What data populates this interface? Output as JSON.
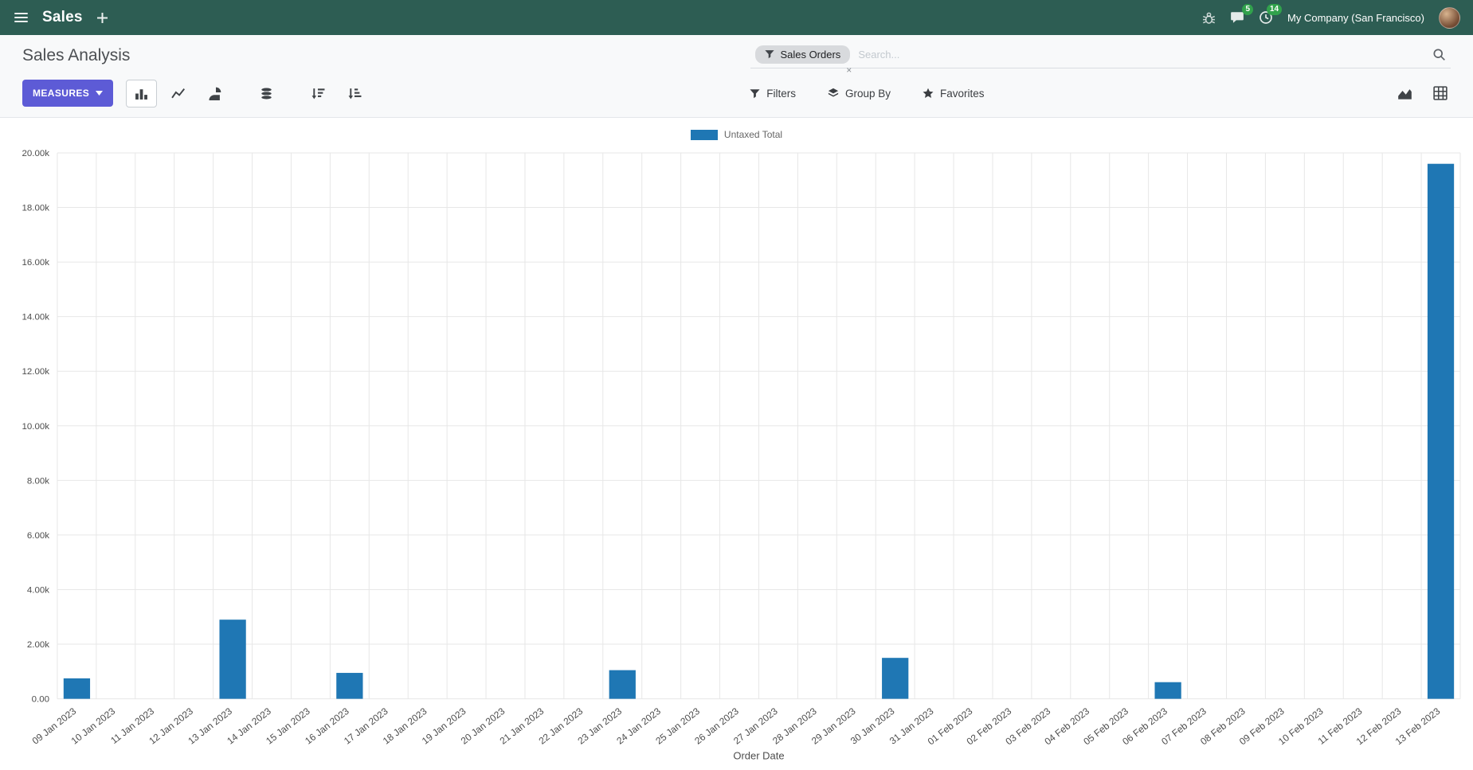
{
  "colors": {
    "navbar_bg": "#2d5d53",
    "accent": "#5d5bd6",
    "badge_green": "#31a24c",
    "bar_blue": "#1f77b4"
  },
  "navbar": {
    "app_name": "Sales",
    "company": "My Company (San Francisco)",
    "badges": {
      "messages": "5",
      "activities": "14"
    }
  },
  "control_panel": {
    "breadcrumb": "Sales Analysis",
    "search": {
      "facet_label": "Sales Orders",
      "facet_remove_label": "×",
      "placeholder": "Search..."
    },
    "measures_label": "MEASURES",
    "filters_label": "Filters",
    "group_by_label": "Group By",
    "favorites_label": "Favorites"
  },
  "chart_data": {
    "type": "bar",
    "title": "",
    "categories": [
      "09 Jan 2023",
      "10 Jan 2023",
      "11 Jan 2023",
      "12 Jan 2023",
      "13 Jan 2023",
      "14 Jan 2023",
      "15 Jan 2023",
      "16 Jan 2023",
      "17 Jan 2023",
      "18 Jan 2023",
      "19 Jan 2023",
      "20 Jan 2023",
      "21 Jan 2023",
      "22 Jan 2023",
      "23 Jan 2023",
      "24 Jan 2023",
      "25 Jan 2023",
      "26 Jan 2023",
      "27 Jan 2023",
      "28 Jan 2023",
      "29 Jan 2023",
      "30 Jan 2023",
      "31 Jan 2023",
      "01 Feb 2023",
      "02 Feb 2023",
      "03 Feb 2023",
      "04 Feb 2023",
      "05 Feb 2023",
      "06 Feb 2023",
      "07 Feb 2023",
      "08 Feb 2023",
      "09 Feb 2023",
      "10 Feb 2023",
      "11 Feb 2023",
      "12 Feb 2023",
      "13 Feb 2023"
    ],
    "series": [
      {
        "name": "Untaxed Total",
        "color": "#1f77b4",
        "values": [
          750,
          0,
          0,
          0,
          2900,
          0,
          0,
          950,
          0,
          0,
          0,
          0,
          0,
          0,
          1050,
          0,
          0,
          0,
          0,
          0,
          0,
          1500,
          0,
          0,
          0,
          0,
          0,
          0,
          610,
          0,
          0,
          0,
          0,
          0,
          0,
          19600
        ]
      }
    ],
    "xlabel": "Order Date",
    "ylabel": "",
    "ylim": [
      0,
      20000
    ],
    "ytick_step": 2000,
    "ytick_labels": [
      "0.00",
      "2.00k",
      "4.00k",
      "6.00k",
      "8.00k",
      "10.00k",
      "12.00k",
      "14.00k",
      "16.00k",
      "18.00k",
      "20.00k"
    ],
    "grid": true,
    "legend_position": "top"
  }
}
